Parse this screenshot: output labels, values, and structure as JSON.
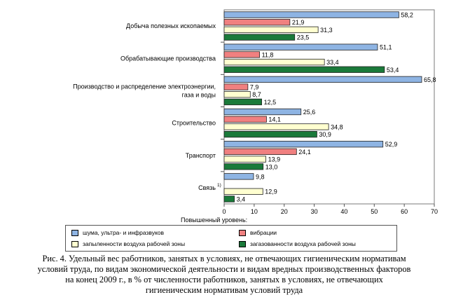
{
  "chart_data": {
    "type": "bar",
    "orientation": "horizontal",
    "categories": [
      "Добыча полезных ископаемых",
      "Обрабатывающие производства",
      "Производство и распределение электроэнергии, газа и воды",
      "Строительство",
      "Транспорт",
      "Связь"
    ],
    "category_lines": [
      [
        "Добыча полезных ископаемых"
      ],
      [
        "Обрабатывающие производства"
      ],
      [
        "Производство и распределение электроэнергии,",
        "газа и воды"
      ],
      [
        "Строительство"
      ],
      [
        "Транспорт"
      ],
      [
        "Связь"
      ]
    ],
    "category_footnotes": [
      "",
      "",
      "",
      "",
      "",
      "1)"
    ],
    "series": [
      {
        "name": "шума, ультра- и инфразвуков",
        "color": "#8eb4e3",
        "values": [
          58.2,
          51.1,
          65.8,
          25.6,
          52.9,
          9.8
        ]
      },
      {
        "name": "вибрации",
        "color": "#f08080",
        "values": [
          21.9,
          11.8,
          7.9,
          14.1,
          24.1,
          null
        ]
      },
      {
        "name": "запыленности воздуха рабочей зоны",
        "color": "#ffffd0",
        "values": [
          31.3,
          33.4,
          8.7,
          34.8,
          13.9,
          12.9
        ]
      },
      {
        "name": "загазованности воздуха рабочей зоны",
        "color": "#1a7a3a",
        "values": [
          23.5,
          53.4,
          12.5,
          30.9,
          13.0,
          3.4
        ]
      }
    ],
    "value_labels": [
      [
        "58,2",
        "21,9",
        "31,3",
        "23,5"
      ],
      [
        "51,1",
        "11,8",
        "33,4",
        "53,4"
      ],
      [
        "65,8",
        "7,9",
        "8,7",
        "12,5"
      ],
      [
        "25,6",
        "14,1",
        "34,8",
        "30,9"
      ],
      [
        "52,9",
        "24,1",
        "13,9",
        "13,0"
      ],
      [
        "9,8",
        "",
        "12,9",
        "3,4"
      ]
    ],
    "xlim": [
      0,
      70
    ],
    "xticks": [
      0,
      10,
      20,
      30,
      40,
      50,
      60,
      70
    ],
    "xlabel": "Повышенный уровень:",
    "legend_placement": "bottom",
    "grid": false
  },
  "caption": {
    "lines": [
      "Рис. 4. Удельный вес работников, занятых в условиях, не отвечающих гигиеническим нормативам",
      "условий труда, по видам экономической деятельности и видам вредных производственных факторов",
      "на конец 2009 г., в % от численности работников, занятых в условиях, не отвечающих",
      "гигиеническим нормативам условий труда"
    ]
  }
}
